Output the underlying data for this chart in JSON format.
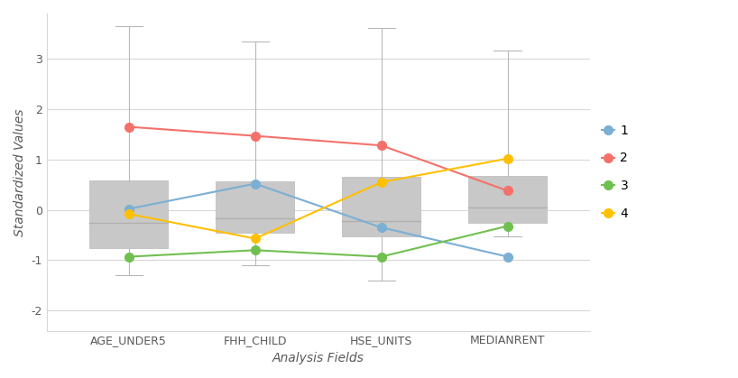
{
  "categories": [
    "AGE_UNDER5",
    "FHH_CHILD",
    "HSE_UNITS",
    "MEDIANRENT"
  ],
  "xlabel": "Analysis Fields",
  "ylabel": "Standardized Values",
  "ylim": [
    -2.4,
    3.9
  ],
  "yticks": [
    -2,
    -1,
    0,
    1,
    2,
    3
  ],
  "box_stats": [
    {
      "whislo": -1.3,
      "q1": -0.75,
      "med": -0.25,
      "q3": 0.58,
      "whishi": 3.65
    },
    {
      "whislo": -1.1,
      "q1": -0.45,
      "med": -0.17,
      "q3": 0.57,
      "whishi": 3.35
    },
    {
      "whislo": -1.4,
      "q1": -0.52,
      "med": -0.22,
      "q3": 0.65,
      "whishi": 3.62
    },
    {
      "whislo": -0.52,
      "q1": -0.25,
      "med": 0.05,
      "q3": 0.68,
      "whishi": 3.17
    }
  ],
  "lines": [
    {
      "label": "1",
      "color": "#7bafd4",
      "values": [
        0.02,
        0.52,
        -0.35,
        -0.93
      ]
    },
    {
      "label": "2",
      "color": "#f4716b",
      "values": [
        1.65,
        1.47,
        1.28,
        0.38
      ]
    },
    {
      "label": "3",
      "color": "#70c050",
      "values": [
        -0.93,
        -0.8,
        -0.93,
        -0.32
      ]
    },
    {
      "label": "4",
      "color": "#ffc000",
      "values": [
        -0.08,
        -0.57,
        0.55,
        1.02
      ]
    }
  ],
  "box_facecolor": "#c8c8c8",
  "box_edgecolor": "#c0c0c0",
  "median_color": "#b0b0b0",
  "whisker_color": "#b8b8b8",
  "cap_color": "#b8b8b8",
  "background_color": "#ffffff",
  "grid_color": "#d8d8d8",
  "axis_label_fontsize": 10,
  "tick_fontsize": 9,
  "legend_fontsize": 10
}
